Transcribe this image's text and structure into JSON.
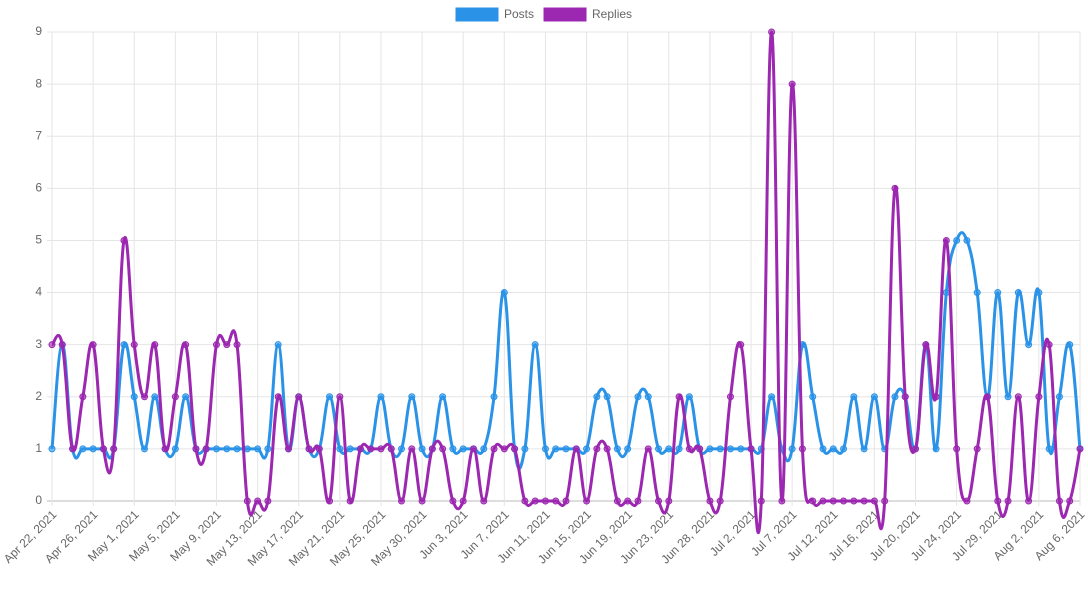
{
  "chart_data": {
    "type": "line",
    "categories": [
      "Apr 22, 2021",
      null,
      null,
      null,
      "Apr 26, 2021",
      null,
      null,
      null,
      "May 1, 2021",
      null,
      null,
      null,
      "May 5, 2021",
      null,
      null,
      null,
      "May 9, 2021",
      null,
      null,
      null,
      "May 13, 2021",
      null,
      null,
      null,
      "May 17, 2021",
      null,
      null,
      null,
      "May 21, 2021",
      null,
      null,
      null,
      "May 25, 2021",
      null,
      null,
      null,
      "May 30, 2021",
      null,
      null,
      null,
      "Jun 3, 2021",
      null,
      null,
      null,
      "Jun 7, 2021",
      null,
      null,
      null,
      "Jun 11, 2021",
      null,
      null,
      null,
      "Jun 15, 2021",
      null,
      null,
      null,
      "Jun 19, 2021",
      null,
      null,
      null,
      "Jun 23, 2021",
      null,
      null,
      null,
      "Jun 28, 2021",
      null,
      null,
      null,
      "Jul 2, 2021",
      null,
      null,
      null,
      "Jul 7, 2021",
      null,
      null,
      null,
      "Jul 12, 2021",
      null,
      null,
      null,
      "Jul 16, 2021",
      null,
      null,
      null,
      "Jul 20, 2021",
      null,
      null,
      null,
      "Jul 24, 2021",
      null,
      null,
      null,
      "Jul 29, 2021",
      null,
      null,
      null,
      "Aug 2, 2021",
      null,
      null,
      null,
      "Aug 6, 2021"
    ],
    "series": [
      {
        "name": "Posts",
        "color": "#2a93e8",
        "values": [
          1,
          3,
          1,
          1,
          1,
          1,
          1,
          3,
          2,
          1,
          2,
          1,
          1,
          2,
          1,
          1,
          1,
          1,
          1,
          1,
          1,
          1,
          3,
          1,
          2,
          1,
          1,
          2,
          1,
          1,
          1,
          1,
          2,
          1,
          1,
          2,
          1,
          1,
          2,
          1,
          1,
          1,
          1,
          2,
          4,
          1,
          1,
          3,
          1,
          1,
          1,
          1,
          1,
          2,
          2,
          1,
          1,
          2,
          2,
          1,
          1,
          1,
          2,
          1,
          1,
          1,
          1,
          1,
          1,
          1,
          2,
          1,
          1,
          3,
          2,
          1,
          1,
          1,
          2,
          1,
          2,
          1,
          2,
          2,
          1,
          3,
          1,
          4,
          5,
          5,
          4,
          2,
          4,
          2,
          4,
          3,
          4,
          1,
          2,
          3,
          1
        ]
      },
      {
        "name": "Replies",
        "color": "#9c27b0",
        "values": [
          3,
          3,
          1,
          2,
          3,
          1,
          1,
          5,
          3,
          2,
          3,
          1,
          2,
          3,
          1,
          1,
          3,
          3,
          3,
          0,
          0,
          0,
          2,
          1,
          2,
          1,
          1,
          0,
          2,
          0,
          1,
          1,
          1,
          1,
          0,
          1,
          0,
          1,
          1,
          0,
          0,
          1,
          0,
          1,
          1,
          1,
          0,
          0,
          0,
          0,
          0,
          1,
          0,
          1,
          1,
          0,
          0,
          0,
          1,
          0,
          0,
          2,
          1,
          1,
          0,
          0,
          2,
          3,
          1,
          0,
          9,
          0,
          8,
          1,
          0,
          0,
          0,
          0,
          0,
          0,
          0,
          0,
          6,
          2,
          1,
          3,
          2,
          5,
          1,
          0,
          1,
          2,
          0,
          0,
          2,
          0,
          2,
          3,
          0,
          0,
          1
        ]
      }
    ],
    "ylim": [
      0,
      9
    ],
    "yticks": [
      0,
      1,
      2,
      3,
      4,
      5,
      6,
      7,
      8,
      9
    ],
    "grid": true,
    "legend": "top"
  }
}
